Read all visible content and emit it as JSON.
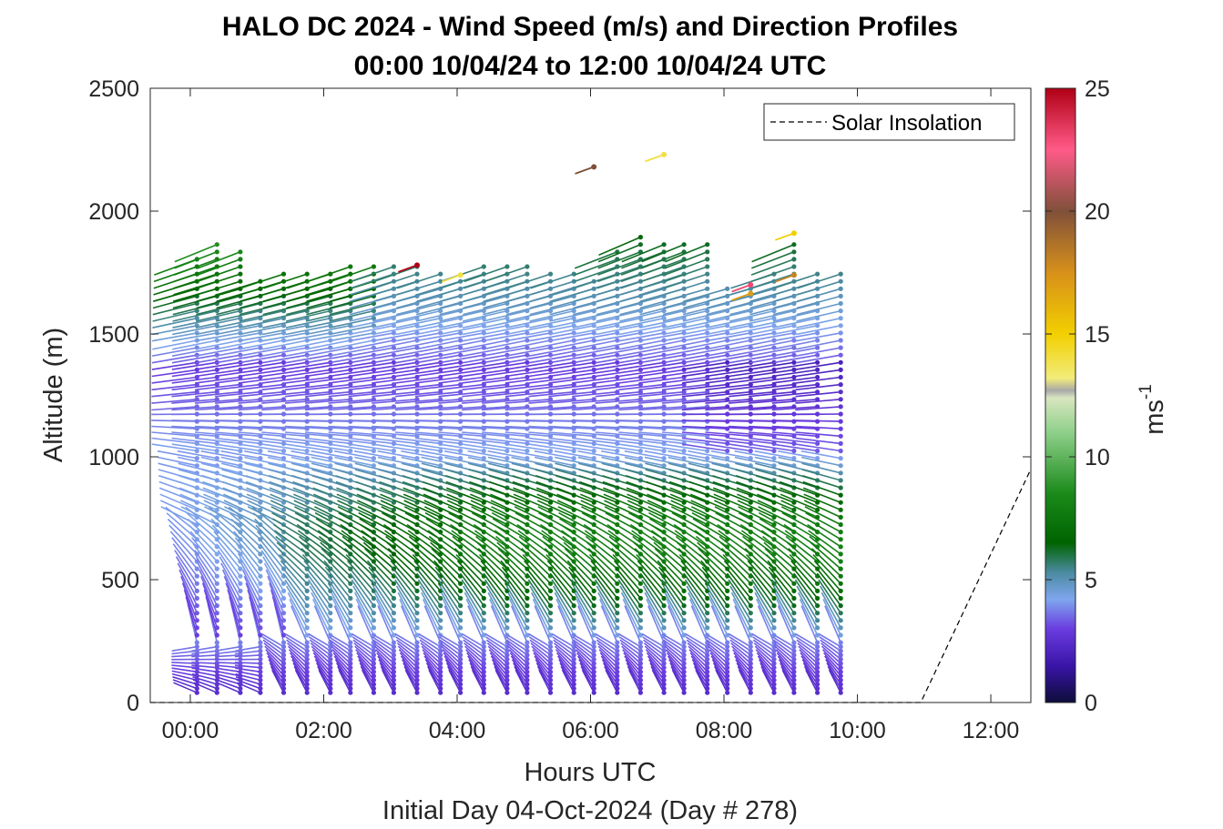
{
  "chart_data": {
    "type": "barb-profile",
    "title": "HALO DC 2024 - Wind Speed (m/s) and Direction Profiles",
    "subtitle": "00:00 10/04/24 to 12:00 10/04/24  UTC",
    "xlabel": "Hours UTC",
    "xlabel2": "Initial Day 04-Oct-2024 (Day # 278)",
    "ylabel": "Altitude (m)",
    "xlim_hours": [
      -0.6,
      12.6
    ],
    "ylim": [
      0,
      2500
    ],
    "x_ticks": [
      0,
      2,
      4,
      6,
      8,
      10,
      12
    ],
    "x_tick_labels": [
      "00:00",
      "02:00",
      "04:00",
      "06:00",
      "08:00",
      "10:00",
      "12:00"
    ],
    "y_ticks": [
      0,
      500,
      1000,
      1500,
      2000,
      2500
    ],
    "y_tick_labels": [
      "0",
      "500",
      "1000",
      "1500",
      "2000",
      "2500"
    ],
    "colorbar": {
      "label": "ms",
      "label_exponent": "-1",
      "range": [
        0,
        25
      ],
      "ticks": [
        0,
        5,
        10,
        15,
        20,
        25
      ],
      "tick_labels": [
        "0",
        "5",
        "10",
        "15",
        "20",
        "25"
      ],
      "stops": [
        {
          "v": 0,
          "c": "#0d0d3a"
        },
        {
          "v": 1.5,
          "c": "#3a14a8"
        },
        {
          "v": 3,
          "c": "#6a3de0"
        },
        {
          "v": 4.2,
          "c": "#7fa6ee"
        },
        {
          "v": 5.3,
          "c": "#4a8aa0"
        },
        {
          "v": 6.5,
          "c": "#006400"
        },
        {
          "v": 8.5,
          "c": "#1a8a1a"
        },
        {
          "v": 11,
          "c": "#8fd08a"
        },
        {
          "v": 12.4,
          "c": "#d8e6c0"
        },
        {
          "v": 12.7,
          "c": "#a8a8a8"
        },
        {
          "v": 13.2,
          "c": "#f2ec7a"
        },
        {
          "v": 15,
          "c": "#f2cf00"
        },
        {
          "v": 17.5,
          "c": "#d7901a"
        },
        {
          "v": 20,
          "c": "#80503a"
        },
        {
          "v": 22.5,
          "c": "#ff5a88"
        },
        {
          "v": 25,
          "c": "#b00015"
        }
      ]
    },
    "legend": {
      "entries": [
        "Solar Insolation"
      ],
      "placement": "top-right"
    },
    "solar_insolation": {
      "style": "dashed",
      "points": [
        [
          -0.6,
          0
        ],
        [
          10.95,
          0
        ],
        [
          12.6,
          950
        ]
      ]
    },
    "profile_hours": [
      0.1,
      0.4,
      0.75,
      1.05,
      1.4,
      1.75,
      2.1,
      2.4,
      2.75,
      3.05,
      3.4,
      3.75,
      4.05,
      4.4,
      4.75,
      5.05,
      5.4,
      5.75,
      6.05,
      6.4,
      6.75,
      7.1,
      7.4,
      7.75,
      8.05,
      8.4,
      8.75,
      9.05,
      9.4,
      9.75
    ],
    "profile_top_altitude_m": [
      1830,
      1880,
      1840,
      1740,
      1750,
      1770,
      1770,
      1780,
      1780,
      1780,
      1780,
      1760,
      1740,
      1780,
      1780,
      1790,
      1760,
      1750,
      1740,
      1840,
      1900,
      1880,
      1870,
      1870,
      1700,
      1700,
      1750,
      1890,
      1770,
      1750
    ],
    "isolated_barbs": [
      {
        "hour": 6.05,
        "alt": 2180,
        "speed": 20
      },
      {
        "hour": 7.1,
        "alt": 2230,
        "speed": 14
      },
      {
        "hour": 3.4,
        "alt": 1780,
        "speed": 25
      },
      {
        "hour": 4.05,
        "alt": 1740,
        "speed": 14
      },
      {
        "hour": 8.4,
        "alt": 1700,
        "speed": 23
      },
      {
        "hour": 8.4,
        "alt": 1665,
        "speed": 17
      },
      {
        "hour": 9.05,
        "alt": 1910,
        "speed": 15
      },
      {
        "hour": 9.05,
        "alt": 1740,
        "speed": 18
      }
    ]
  }
}
